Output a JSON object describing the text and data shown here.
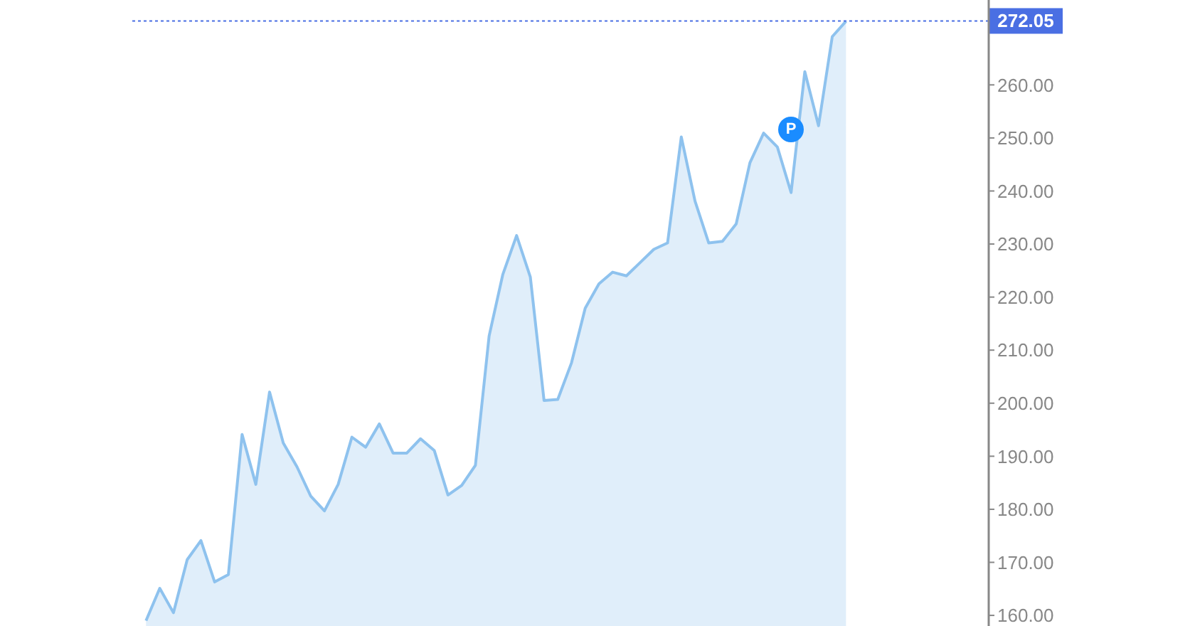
{
  "chart_data": {
    "type": "area",
    "categories": [
      null,
      null,
      null,
      null,
      null,
      null,
      null,
      null,
      null,
      null,
      null,
      null,
      null,
      null,
      null,
      null,
      null,
      null,
      null,
      null,
      null,
      null,
      null,
      null,
      null,
      null,
      null,
      null,
      null,
      null,
      null,
      null,
      null,
      null,
      null,
      null,
      null,
      null,
      null,
      null,
      null,
      null,
      null,
      null,
      null,
      null,
      null,
      null,
      null,
      null,
      null,
      null
    ],
    "series": [
      {
        "color": "#8ec2ee",
        "values": [
          159,
          165.1,
          160.5,
          170.5,
          174.1,
          166.3,
          167.7,
          194.1,
          184.7,
          202.1,
          192.5,
          188,
          182.5,
          179.7,
          184.7,
          193.6,
          191.7,
          196.1,
          190.6,
          190.6,
          193.3,
          191.1,
          182.7,
          184.5,
          188.3,
          212.7,
          224.3,
          231.6,
          223.8,
          200.5,
          200.7,
          207.6,
          217.9,
          222.5,
          224.7,
          224,
          226.5,
          229,
          230.2,
          250.2,
          238.1,
          230.2,
          230.5,
          233.8,
          245.3,
          250.9,
          248.3,
          239.7,
          262.5,
          252.3,
          269.1,
          272
        ]
      }
    ],
    "ylim": [
      158,
      276
    ],
    "yticks": [
      {
        "value": 160,
        "label": "160.00"
      },
      {
        "value": 170,
        "label": "170.00"
      },
      {
        "value": 180,
        "label": "180.00"
      },
      {
        "value": 190,
        "label": "190.00"
      },
      {
        "value": 200,
        "label": "200.00"
      },
      {
        "value": 210,
        "label": "210.00"
      },
      {
        "value": 220,
        "label": "220.00"
      },
      {
        "value": 230,
        "label": "230.00"
      },
      {
        "value": 240,
        "label": "240.00"
      },
      {
        "value": 250,
        "label": "250.00"
      },
      {
        "value": 260,
        "label": "260.00"
      }
    ],
    "ref_lines": [
      {
        "axis": "y",
        "value": 272.05,
        "label": "272.05",
        "color": "#4a6fe3",
        "line_style": "dotted"
      }
    ],
    "annotations": [
      "P"
    ],
    "grid": false,
    "legend": false,
    "marker": "none",
    "tick_labels": "y"
  }
}
